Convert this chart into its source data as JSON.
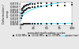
{
  "title": "",
  "xlabel": "pseudotime/loading cycles",
  "ylabel": "Deformation /\ncreep",
  "xlim": [
    0,
    100
  ],
  "ylim": [
    -0.003,
    0.075
  ],
  "yticks": [
    0.0,
    0.01,
    0.02,
    0.03,
    0.04,
    0.05,
    0.06,
    0.07
  ],
  "xticks": [
    0,
    25,
    50,
    75,
    100
  ],
  "series": [
    {
      "label": "8.00 MPa",
      "marker": "s",
      "color": "#333333",
      "markersize": 1.5,
      "x": [
        1,
        2,
        3,
        4,
        5,
        6,
        7,
        8,
        10,
        12,
        15,
        18,
        22,
        27,
        33,
        40,
        50,
        60,
        72,
        85,
        100
      ],
      "y": [
        0.0005,
        0.0008,
        0.001,
        0.0012,
        0.0014,
        0.0015,
        0.0016,
        0.0017,
        0.0018,
        0.0019,
        0.002,
        0.0021,
        0.0022,
        0.0023,
        0.0024,
        0.0025,
        0.0026,
        0.0027,
        0.0028,
        0.0029,
        0.003
      ]
    },
    {
      "label": "10.66 MPa",
      "marker": "s",
      "color": "#333333",
      "markersize": 1.5,
      "x": [
        1,
        2,
        3,
        4,
        5,
        6,
        7,
        8,
        10,
        12,
        15,
        18,
        22,
        27,
        33,
        40,
        50,
        60,
        72,
        85,
        100
      ],
      "y": [
        0.02,
        0.03,
        0.036,
        0.04,
        0.043,
        0.045,
        0.047,
        0.049,
        0.051,
        0.053,
        0.055,
        0.056,
        0.058,
        0.059,
        0.06,
        0.061,
        0.062,
        0.063,
        0.064,
        0.065,
        0.066
      ]
    },
    {
      "label": "11.33 MPa",
      "marker": "s",
      "color": "#333333",
      "markersize": 1.5,
      "x": [
        1,
        2,
        3,
        4,
        5,
        6,
        7,
        8,
        10,
        12,
        15,
        18,
        22,
        27,
        33,
        40,
        50,
        60,
        72,
        85,
        100
      ],
      "y": [
        0.038,
        0.048,
        0.053,
        0.056,
        0.058,
        0.06,
        0.062,
        0.063,
        0.065,
        0.066,
        0.067,
        0.068,
        0.069,
        0.07,
        0.071,
        0.072,
        0.073,
        0.073,
        0.074,
        0.074,
        0.075
      ]
    }
  ],
  "fit_color": "#55ddff",
  "fit_linewidth": 0.7,
  "fit_params": [
    {
      "a": 0.0008,
      "b": 0.35
    },
    {
      "a": 0.02,
      "b": 0.3
    },
    {
      "a": 0.038,
      "b": 0.22
    }
  ],
  "legend_labels": [
    "8.00 MPa",
    "10.66 MPa",
    "11.33 MPa"
  ],
  "legend_marker_color": "#333333",
  "legend_line_color": "#55ddff",
  "bg_color": "#e8e8e8",
  "axes_color": "#ffffff"
}
